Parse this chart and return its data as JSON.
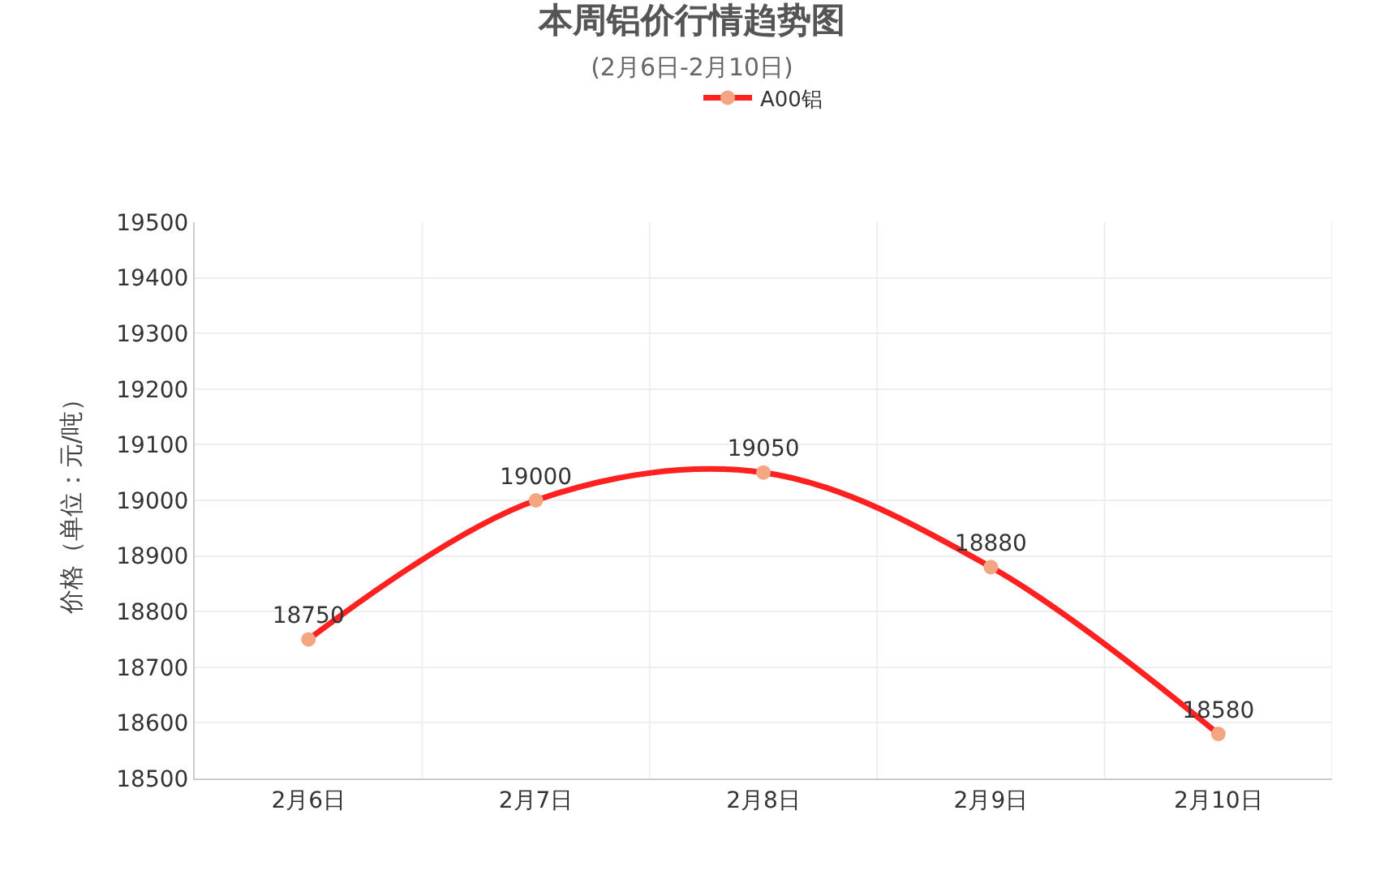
{
  "chart_data": {
    "type": "line",
    "title": "本周铝价行情趋势图",
    "subtitle": "(2月6日-2月10日)",
    "ylabel": "价格（单位：元/吨）",
    "categories": [
      "2月6日",
      "2月7日",
      "2月8日",
      "2月9日",
      "2月10日"
    ],
    "series": [
      {
        "name": "A00铝",
        "color": "#ff2020",
        "colors": [
          "#f4a582",
          "#f4a582",
          "#f4a582",
          "#f4a582",
          "#f4a582"
        ],
        "values": [
          18750,
          19000,
          19050,
          18880,
          18580
        ]
      }
    ],
    "ylim": [
      18500,
      19500
    ],
    "yticks": [
      18500,
      18600,
      18700,
      18800,
      18900,
      19000,
      19100,
      19200,
      19300,
      19400,
      19500
    ],
    "grid": true,
    "legend": "top",
    "marker": "circle",
    "line_style": "solid",
    "data_labels": true
  }
}
